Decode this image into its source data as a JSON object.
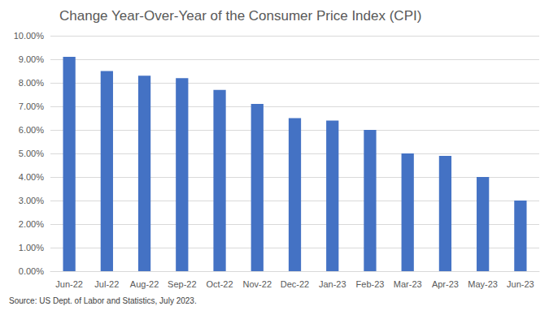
{
  "chart_data": {
    "type": "bar",
    "title": "Change Year-Over-Year of the Consumer Price Index (CPI)",
    "categories": [
      "Jun-22",
      "Jul-22",
      "Aug-22",
      "Sep-22",
      "Oct-22",
      "Nov-22",
      "Dec-22",
      "Jan-23",
      "Feb-23",
      "Mar-23",
      "Apr-23",
      "May-23",
      "Jun-23"
    ],
    "values": [
      9.1,
      8.5,
      8.3,
      8.2,
      7.7,
      7.1,
      6.5,
      6.4,
      6.0,
      5.0,
      4.9,
      4.0,
      3.0
    ],
    "color": "#4472c4",
    "ylim": [
      0,
      10
    ],
    "yticks": [
      {
        "value": 0,
        "label": "0.00%"
      },
      {
        "value": 1,
        "label": "1.00%"
      },
      {
        "value": 2,
        "label": "2.00%"
      },
      {
        "value": 3,
        "label": "3.00%"
      },
      {
        "value": 4,
        "label": "4.00%"
      },
      {
        "value": 5,
        "label": "5.00%"
      },
      {
        "value": 6,
        "label": "6.00%"
      },
      {
        "value": 7,
        "label": "7.00%"
      },
      {
        "value": 8,
        "label": "8.00%"
      },
      {
        "value": 9,
        "label": "9.00%"
      },
      {
        "value": 10,
        "label": "10.00%"
      }
    ],
    "grid": true,
    "annotations": [
      "Source: US Dept. of Labor and Statistics, July 2023."
    ]
  }
}
